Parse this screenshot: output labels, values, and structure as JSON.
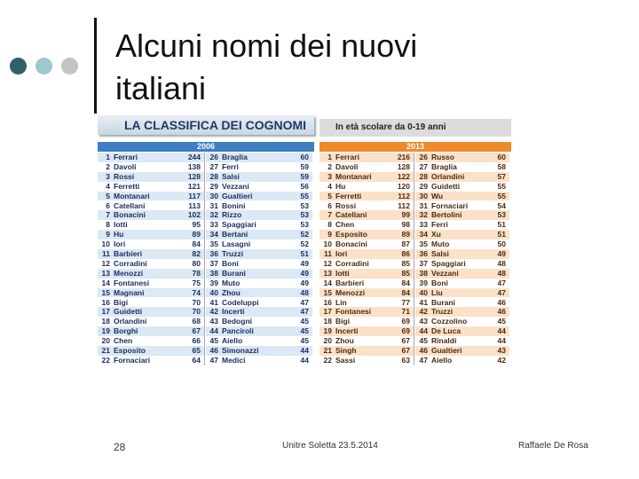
{
  "slide": {
    "title": "Alcuni nomi dei nuovi italiani",
    "banner": "LA CLASSIFICA DEI COGNOMI",
    "subtitle": "In età scolare da 0-19 anni",
    "panels": [
      {
        "year": "2006",
        "rows": [
          [
            1,
            "Ferrari",
            244
          ],
          [
            2,
            "Davoli",
            138
          ],
          [
            3,
            "Rossi",
            128
          ],
          [
            4,
            "Ferretti",
            121
          ],
          [
            5,
            "Montanari",
            117
          ],
          [
            6,
            "Catellani",
            113
          ],
          [
            7,
            "Bonacini",
            102
          ],
          [
            8,
            "Iotti",
            95
          ],
          [
            9,
            "Hu",
            89
          ],
          [
            10,
            "Iori",
            84
          ],
          [
            11,
            "Barbieri",
            82
          ],
          [
            12,
            "Corradini",
            80
          ],
          [
            13,
            "Menozzi",
            78
          ],
          [
            14,
            "Fontanesi",
            75
          ],
          [
            15,
            "Magnani",
            74
          ],
          [
            16,
            "Bigi",
            70
          ],
          [
            17,
            "Guidetti",
            70
          ],
          [
            18,
            "Orlandini",
            68
          ],
          [
            19,
            "Borghi",
            67
          ],
          [
            20,
            "Chen",
            66
          ],
          [
            21,
            "Esposito",
            65
          ],
          [
            22,
            "Fornaciari",
            64
          ],
          [
            26,
            "Braglia",
            60
          ],
          [
            27,
            "Ferri",
            59
          ],
          [
            28,
            "Salsi",
            59
          ],
          [
            29,
            "Vezzani",
            56
          ],
          [
            30,
            "Gualtieri",
            55
          ],
          [
            31,
            "Bonini",
            53
          ],
          [
            32,
            "Rizzo",
            53
          ],
          [
            33,
            "Spaggiari",
            53
          ],
          [
            34,
            "Bertani",
            52
          ],
          [
            35,
            "Lasagni",
            52
          ],
          [
            36,
            "Truzzi",
            51
          ],
          [
            37,
            "Boni",
            49
          ],
          [
            38,
            "Burani",
            49
          ],
          [
            39,
            "Muto",
            49
          ],
          [
            40,
            "Zhou",
            48
          ],
          [
            41,
            "Codeluppi",
            47
          ],
          [
            42,
            "Incerti",
            47
          ],
          [
            43,
            "Bedogni",
            45
          ],
          [
            44,
            "Panciroli",
            45
          ],
          [
            45,
            "Aiello",
            45
          ],
          [
            46,
            "Simonazzi",
            44
          ],
          [
            47,
            "Medici",
            44
          ]
        ]
      },
      {
        "year": "2013",
        "rows": [
          [
            1,
            "Ferrari",
            216
          ],
          [
            2,
            "Davoli",
            128
          ],
          [
            3,
            "Montanari",
            122
          ],
          [
            4,
            "Hu",
            120
          ],
          [
            5,
            "Ferretti",
            112
          ],
          [
            6,
            "Rossi",
            112
          ],
          [
            7,
            "Catellani",
            99
          ],
          [
            8,
            "Chen",
            98
          ],
          [
            9,
            "Esposito",
            89
          ],
          [
            10,
            "Bonacini",
            87
          ],
          [
            11,
            "Iori",
            86
          ],
          [
            12,
            "Corradini",
            85
          ],
          [
            13,
            "Iotti",
            85
          ],
          [
            14,
            "Barbieri",
            84
          ],
          [
            15,
            "Menozzi",
            84
          ],
          [
            16,
            "Lin",
            77
          ],
          [
            17,
            "Fontanesi",
            71
          ],
          [
            18,
            "Bigi",
            69
          ],
          [
            19,
            "Incerti",
            69
          ],
          [
            20,
            "Zhou",
            67
          ],
          [
            21,
            "Singh",
            67
          ],
          [
            22,
            "Sassi",
            63
          ],
          [
            26,
            "Russo",
            60
          ],
          [
            27,
            "Braglia",
            58
          ],
          [
            28,
            "Orlandini",
            57
          ],
          [
            29,
            "Guidetti",
            55
          ],
          [
            30,
            "Wu",
            55
          ],
          [
            31,
            "Fornaciari",
            54
          ],
          [
            32,
            "Bertolini",
            53
          ],
          [
            33,
            "Ferri",
            51
          ],
          [
            34,
            "Xu",
            51
          ],
          [
            35,
            "Muto",
            50
          ],
          [
            36,
            "Salsi",
            49
          ],
          [
            37,
            "Spaggiari",
            48
          ],
          [
            38,
            "Vezzani",
            48
          ],
          [
            39,
            "Boni",
            47
          ],
          [
            40,
            "Liu",
            47
          ],
          [
            41,
            "Burani",
            46
          ],
          [
            42,
            "Truzzi",
            46
          ],
          [
            43,
            "Cozzolino",
            45
          ],
          [
            44,
            "De Luca",
            44
          ],
          [
            45,
            "Rinaldi",
            44
          ],
          [
            46,
            "Gualtieri",
            43
          ],
          [
            47,
            "Aiello",
            42
          ]
        ]
      }
    ],
    "footer": {
      "page": "28",
      "event": "Unitre Soletta 23.5.2014",
      "author": "Raffaele De Rosa"
    }
  }
}
